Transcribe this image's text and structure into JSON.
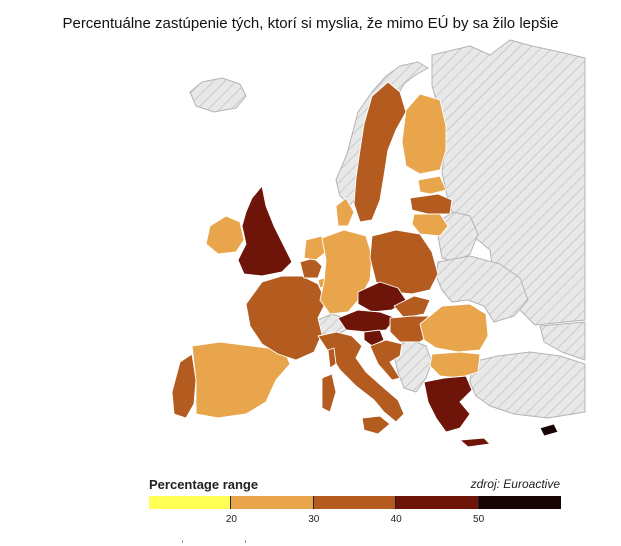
{
  "title": "Percentuálne zastúpenie tých, ktorí si myslia, že mimo EÚ by sa žilo lepšie",
  "legend": {
    "title": "Percentage range",
    "source": "zdroj: Euroactive",
    "bins": [
      {
        "range": [
          10,
          20
        ],
        "color": "#ffff55"
      },
      {
        "range": [
          20,
          30
        ],
        "color": "#e8a54b"
      },
      {
        "range": [
          30,
          40
        ],
        "color": "#b45b1f"
      },
      {
        "range": [
          40,
          50
        ],
        "color": "#6e1408"
      },
      {
        "range": [
          50,
          60
        ],
        "color": "#160404"
      }
    ],
    "ticks": [
      "20",
      "30",
      "40",
      "50"
    ]
  },
  "map_colors": {
    "non_eu_fill": "#e6e6e6",
    "non_eu_hatch": "#c8c8c8"
  },
  "chart_data": {
    "type": "choropleth",
    "title": "Percentuálne zastúpenie tých, ktorí si myslia, že mimo EÚ by sa žilo lepšie",
    "regions": [
      {
        "id": "uk",
        "bin": "40-50"
      },
      {
        "id": "ireland",
        "bin": "20-30"
      },
      {
        "id": "portugal",
        "bin": "30-40"
      },
      {
        "id": "spain",
        "bin": "20-30"
      },
      {
        "id": "france",
        "bin": "30-40"
      },
      {
        "id": "belgium",
        "bin": "30-40"
      },
      {
        "id": "netherlands",
        "bin": "20-30"
      },
      {
        "id": "luxembourg",
        "bin": "20-30"
      },
      {
        "id": "germany",
        "bin": "20-30"
      },
      {
        "id": "denmark",
        "bin": "20-30"
      },
      {
        "id": "sweden",
        "bin": "30-40"
      },
      {
        "id": "finland",
        "bin": "20-30"
      },
      {
        "id": "estonia",
        "bin": "20-30"
      },
      {
        "id": "latvia",
        "bin": "30-40"
      },
      {
        "id": "lithuania",
        "bin": "20-30"
      },
      {
        "id": "poland",
        "bin": "30-40"
      },
      {
        "id": "czechia",
        "bin": "40-50"
      },
      {
        "id": "slovakia",
        "bin": "30-40"
      },
      {
        "id": "austria",
        "bin": "40-50"
      },
      {
        "id": "hungary",
        "bin": "30-40"
      },
      {
        "id": "slovenia",
        "bin": "40-50"
      },
      {
        "id": "croatia",
        "bin": "30-40"
      },
      {
        "id": "italy",
        "bin": "30-40"
      },
      {
        "id": "romania",
        "bin": "20-30"
      },
      {
        "id": "bulgaria",
        "bin": "20-30"
      },
      {
        "id": "greece",
        "bin": "40-50"
      },
      {
        "id": "cyprus",
        "bin": "50-60"
      },
      {
        "id": "malta",
        "bin": "30-40"
      },
      {
        "id": "sardinia",
        "bin": "30-40"
      },
      {
        "id": "corsica",
        "bin": "30-40"
      },
      {
        "id": "sicily",
        "bin": "30-40"
      }
    ]
  }
}
